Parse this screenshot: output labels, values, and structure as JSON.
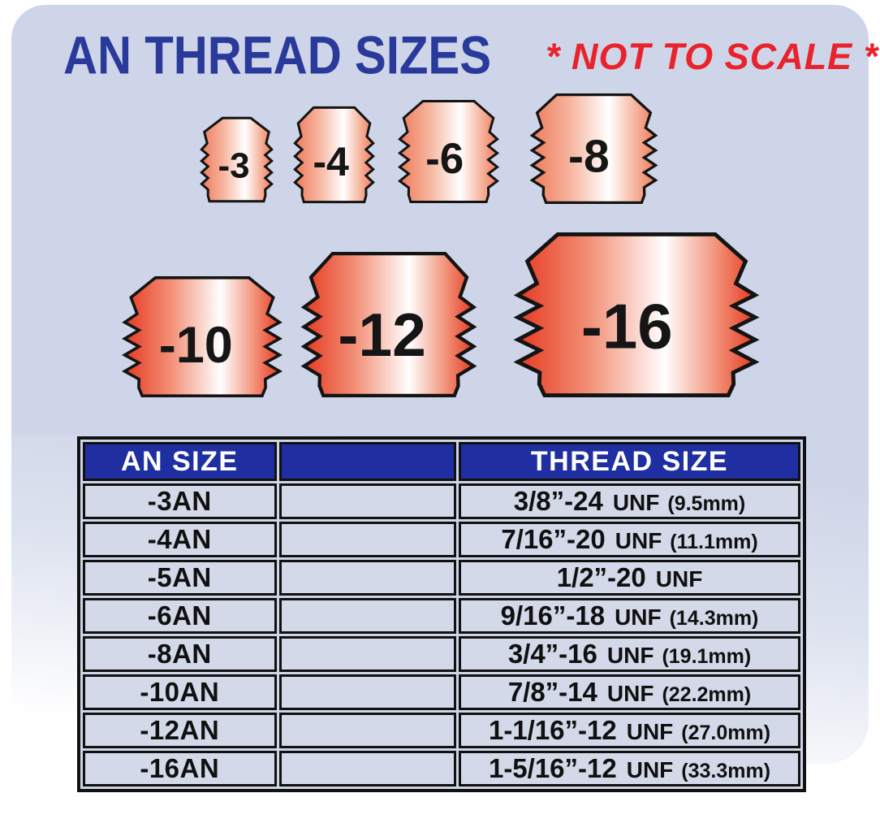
{
  "page": {
    "title": "AN THREAD SIZES",
    "not_to_scale": "* NOT TO SCALE *"
  },
  "colors": {
    "panel_blue": "#cfd5e8",
    "header_blue": "#1f2ea0",
    "title_blue": "#2a3a9b",
    "alert_red": "#e8232b",
    "cell_blue": "#d3d9e9",
    "line_black": "#111111",
    "fitting_edge_small": "#ee7b5c",
    "fitting_mid_small": "#f6b39c",
    "fitting_edge_large": "#e63a22",
    "fitting_mid_large": "#f29077",
    "fitting_highlight": "#ffffff"
  },
  "fittings": {
    "row1": [
      {
        "label": "-3"
      },
      {
        "label": "-4"
      },
      {
        "label": "-6"
      },
      {
        "label": "-8"
      }
    ],
    "row2": [
      {
        "label": "-10"
      },
      {
        "label": "-12"
      },
      {
        "label": "-16"
      }
    ]
  },
  "table": {
    "headers": {
      "an_size": "AN SIZE",
      "spacer": "",
      "thread_size": "THREAD SIZE"
    },
    "rows": [
      {
        "an": "-3AN",
        "thread": "3/8”-24",
        "unf": "UNF",
        "mm": "(9.5mm)"
      },
      {
        "an": "-4AN",
        "thread": "7/16”-20",
        "unf": "UNF",
        "mm": "(11.1mm)"
      },
      {
        "an": "-5AN",
        "thread": "1/2”-20",
        "unf": "UNF",
        "mm": ""
      },
      {
        "an": "-6AN",
        "thread": "9/16”-18",
        "unf": "UNF",
        "mm": "(14.3mm)"
      },
      {
        "an": "-8AN",
        "thread": "3/4”-16",
        "unf": "UNF",
        "mm": "(19.1mm)"
      },
      {
        "an": "-10AN",
        "thread": "7/8”-14",
        "unf": "UNF",
        "mm": "(22.2mm)"
      },
      {
        "an": "-12AN",
        "thread": "1-1/16”-12",
        "unf": "UNF",
        "mm": "(27.0mm)"
      },
      {
        "an": "-16AN",
        "thread": "1-5/16”-12",
        "unf": "UNF",
        "mm": "(33.3mm)"
      }
    ]
  },
  "chart_data": {
    "type": "table",
    "title": "AN THREAD SIZES",
    "annotation": "* NOT TO SCALE *",
    "columns": [
      "AN SIZE",
      "THREAD SIZE"
    ],
    "rows": [
      [
        "-3AN",
        "3/8”-24 UNF (9.5mm)"
      ],
      [
        "-4AN",
        "7/16”-20 UNF (11.1mm)"
      ],
      [
        "-5AN",
        "1/2”-20 UNF"
      ],
      [
        "-6AN",
        "9/16”-18 UNF (14.3mm)"
      ],
      [
        "-8AN",
        "3/4”-16 UNF (19.1mm)"
      ],
      [
        "-10AN",
        "7/8”-14 UNF (22.2mm)"
      ],
      [
        "-12AN",
        "1-1/16”-12 UNF (27.0mm)"
      ],
      [
        "-16AN",
        "1-5/16”-12 UNF (33.3mm)"
      ]
    ],
    "fitting_labels": [
      "-3",
      "-4",
      "-6",
      "-8",
      "-10",
      "-12",
      "-16"
    ]
  }
}
